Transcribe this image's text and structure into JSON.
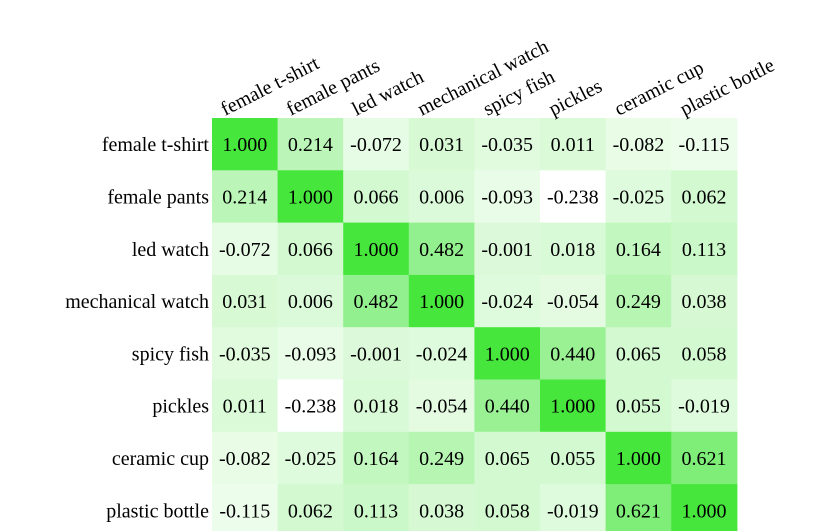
{
  "chart_data": {
    "type": "heatmap",
    "title": "",
    "xlabel": "",
    "ylabel": "",
    "labels": [
      "female t-shirt",
      "female pants",
      "led watch",
      "mechanical watch",
      "spicy fish",
      "pickles",
      "ceramic cup",
      "plastic bottle"
    ],
    "matrix": [
      [
        "1.000",
        "0.214",
        "-0.072",
        "0.031",
        "-0.035",
        "0.011",
        "-0.082",
        "-0.115"
      ],
      [
        "0.214",
        "1.000",
        "0.066",
        "0.006",
        "-0.093",
        "-0.238",
        "-0.025",
        "0.062"
      ],
      [
        "-0.072",
        "0.066",
        "1.000",
        "0.482",
        "-0.001",
        "0.018",
        "0.164",
        "0.113"
      ],
      [
        "0.031",
        "0.006",
        "0.482",
        "1.000",
        "-0.024",
        "-0.054",
        "0.249",
        "0.038"
      ],
      [
        "-0.035",
        "-0.093",
        "-0.001",
        "-0.024",
        "1.000",
        "0.440",
        "0.065",
        "0.058"
      ],
      [
        "0.011",
        "-0.238",
        "0.018",
        "-0.054",
        "0.440",
        "1.000",
        "0.055",
        "-0.019"
      ],
      [
        "-0.082",
        "-0.025",
        "0.164",
        "0.249",
        "0.065",
        "0.055",
        "1.000",
        "0.621"
      ],
      [
        "-0.115",
        "0.062",
        "0.113",
        "0.038",
        "0.058",
        "-0.019",
        "0.621",
        "1.000"
      ]
    ],
    "color_min_value": -0.238,
    "color_max_value": 1.0,
    "color_low": "#ffffff",
    "color_high": "#46e63c",
    "grid": false,
    "legend": "none"
  }
}
